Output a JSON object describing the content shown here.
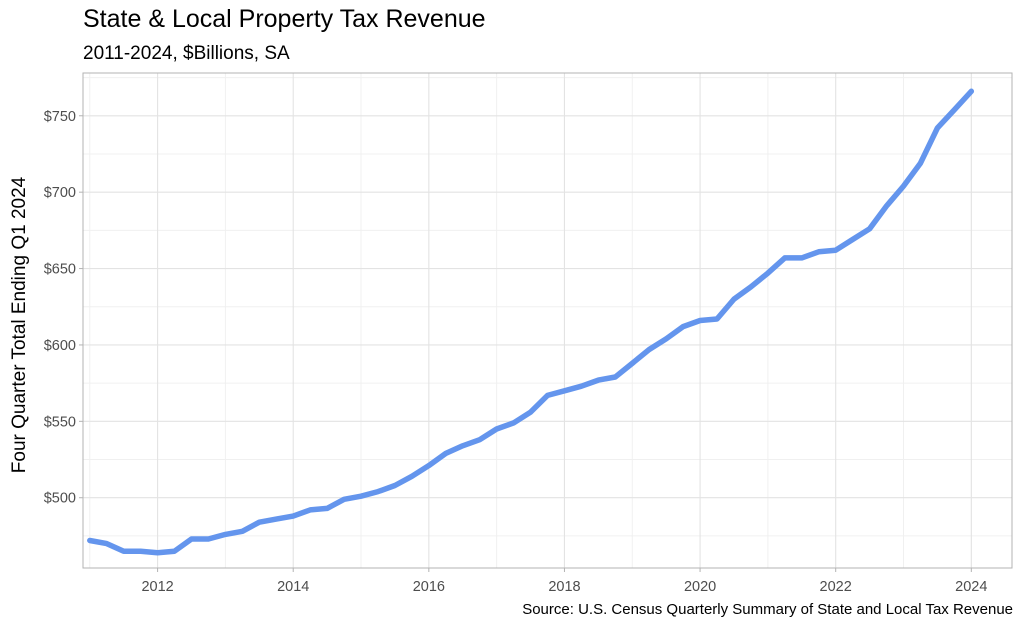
{
  "title": "State & Local Property Tax Revenue",
  "subtitle": "2011-2024, $Billions, SA",
  "caption": "Source: U.S. Census Quarterly Summary of State and Local Tax Revenue",
  "chart_data": {
    "type": "line",
    "title": "State & Local Property Tax Revenue",
    "subtitle": "2011-2024, $Billions, SA",
    "xlabel": "",
    "ylabel": "Four Quarter Total Ending Q1 2024",
    "xlim": [
      2010.9,
      2024.6
    ],
    "ylim": [
      454,
      778
    ],
    "x_ticks": [
      2012,
      2014,
      2016,
      2018,
      2020,
      2022,
      2024
    ],
    "x_tick_labels": [
      "2012",
      "2014",
      "2016",
      "2018",
      "2020",
      "2022",
      "2024"
    ],
    "y_ticks": [
      500,
      550,
      600,
      650,
      700,
      750
    ],
    "y_tick_labels": [
      "$500",
      "$550",
      "$600",
      "$650",
      "$700",
      "$750"
    ],
    "grid": true,
    "line_color": "#6495ED",
    "series": [
      {
        "x": [
          2011.0,
          2011.25,
          2011.5,
          2011.75,
          2012.0,
          2012.25,
          2012.5,
          2012.75,
          2013.0,
          2013.25,
          2013.5,
          2013.75,
          2014.0,
          2014.25,
          2014.5,
          2014.75,
          2015.0,
          2015.25,
          2015.5,
          2015.75,
          2016.0,
          2016.25,
          2016.5,
          2016.75,
          2017.0,
          2017.25,
          2017.5,
          2017.75,
          2018.0,
          2018.25,
          2018.5,
          2018.75,
          2019.0,
          2019.25,
          2019.5,
          2019.75,
          2020.0,
          2020.25,
          2020.5,
          2020.75,
          2021.0,
          2021.25,
          2021.5,
          2021.75,
          2022.0,
          2022.25,
          2022.5,
          2022.75,
          2023.0,
          2023.25,
          2023.5,
          2023.75,
          2024.0
        ],
        "values": [
          472,
          470,
          465,
          465,
          464,
          465,
          473,
          473,
          476,
          478,
          484,
          486,
          488,
          492,
          493,
          499,
          501,
          504,
          508,
          514,
          521,
          529,
          534,
          538,
          545,
          549,
          556,
          567,
          570,
          573,
          577,
          579,
          588,
          597,
          604,
          612,
          616,
          617,
          630,
          638,
          647,
          657,
          657,
          661,
          662,
          669,
          676,
          691,
          704,
          719,
          742,
          754,
          766
        ]
      }
    ]
  }
}
